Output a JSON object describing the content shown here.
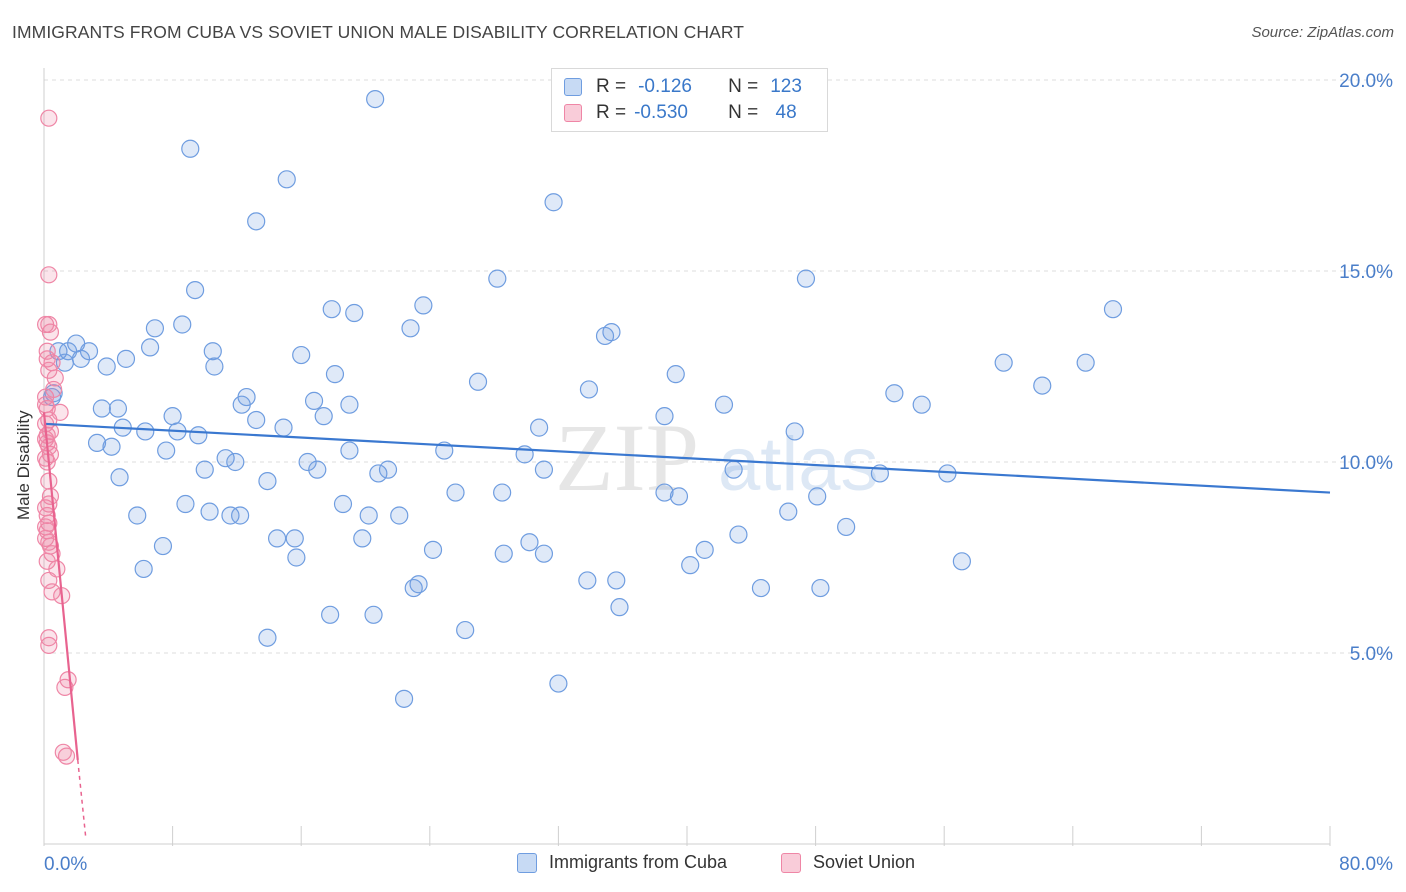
{
  "header": {
    "title": "IMMIGRANTS FROM CUBA VS SOVIET UNION MALE DISABILITY CORRELATION CHART",
    "source": "Source: ZipAtlas.com"
  },
  "stats": [
    {
      "r_label": "R =",
      "r_value": "-0.126",
      "n_label": "N =",
      "n_value": "123"
    },
    {
      "r_label": "R =",
      "r_value": "-0.530",
      "n_label": "N =",
      "n_value": " 48"
    }
  ],
  "colors": {
    "cuba": "#6f9de0",
    "soviet": "#ef86a6",
    "cuba_line": "#3a78d0",
    "soviet_line": "#e8638f"
  },
  "chart_data": {
    "type": "scatter",
    "title": "IMMIGRANTS FROM CUBA VS SOVIET UNION MALE DISABILITY CORRELATION CHART",
    "xlabel": "",
    "ylabel": "Male Disability",
    "xlim": [
      0,
      80
    ],
    "ylim": [
      0,
      20.7
    ],
    "x_tick_labels": [
      "0.0%",
      "80.0%"
    ],
    "y_ticks": [
      5,
      10,
      15,
      20
    ],
    "y_tick_labels": [
      "5.0%",
      "10.0%",
      "15.0%",
      "20.0%"
    ],
    "grid": true,
    "legend_position": "bottom-center",
    "watermark": "ZIPatlas",
    "series": [
      {
        "name": "Immigrants from Cuba",
        "trend": {
          "x0": 0,
          "y0": 11.0,
          "x1": 80,
          "y1": 9.2
        },
        "points": [
          [
            20.6,
            19.5
          ],
          [
            9.1,
            18.2
          ],
          [
            15.1,
            17.4
          ],
          [
            31.7,
            16.8
          ],
          [
            13.2,
            16.3
          ],
          [
            9.4,
            14.5
          ],
          [
            28.2,
            14.8
          ],
          [
            47.4,
            14.8
          ],
          [
            23.6,
            14.1
          ],
          [
            17.9,
            14.0
          ],
          [
            19.3,
            13.9
          ],
          [
            66.5,
            14.0
          ],
          [
            8.6,
            13.6
          ],
          [
            6.9,
            13.5
          ],
          [
            22.8,
            13.5
          ],
          [
            35.3,
            13.4
          ],
          [
            0.9,
            12.9
          ],
          [
            2.0,
            13.1
          ],
          [
            2.8,
            12.9
          ],
          [
            1.5,
            12.9
          ],
          [
            2.3,
            12.7
          ],
          [
            1.3,
            12.6
          ],
          [
            6.6,
            13.0
          ],
          [
            10.5,
            12.9
          ],
          [
            16.0,
            12.8
          ],
          [
            5.1,
            12.7
          ],
          [
            3.9,
            12.5
          ],
          [
            10.6,
            12.5
          ],
          [
            18.1,
            12.3
          ],
          [
            34.9,
            13.3
          ],
          [
            39.3,
            12.3
          ],
          [
            59.7,
            12.6
          ],
          [
            64.8,
            12.6
          ],
          [
            27.0,
            12.1
          ],
          [
            33.9,
            11.9
          ],
          [
            12.6,
            11.7
          ],
          [
            62.1,
            12.0
          ],
          [
            0.5,
            11.7
          ],
          [
            0.6,
            11.8
          ],
          [
            12.3,
            11.5
          ],
          [
            16.8,
            11.6
          ],
          [
            19.0,
            11.5
          ],
          [
            42.3,
            11.5
          ],
          [
            52.9,
            11.8
          ],
          [
            4.6,
            11.4
          ],
          [
            3.6,
            11.4
          ],
          [
            13.2,
            11.1
          ],
          [
            8.0,
            11.2
          ],
          [
            17.4,
            11.2
          ],
          [
            54.6,
            11.5
          ],
          [
            4.9,
            10.9
          ],
          [
            6.3,
            10.8
          ],
          [
            14.9,
            10.9
          ],
          [
            8.3,
            10.8
          ],
          [
            9.6,
            10.7
          ],
          [
            30.8,
            10.9
          ],
          [
            38.6,
            11.2
          ],
          [
            46.7,
            10.8
          ],
          [
            3.3,
            10.5
          ],
          [
            4.2,
            10.4
          ],
          [
            7.6,
            10.3
          ],
          [
            11.3,
            10.1
          ],
          [
            19.0,
            10.3
          ],
          [
            24.9,
            10.3
          ],
          [
            29.9,
            10.2
          ],
          [
            16.4,
            10.0
          ],
          [
            11.9,
            10.0
          ],
          [
            10.0,
            9.8
          ],
          [
            17.0,
            9.8
          ],
          [
            20.8,
            9.7
          ],
          [
            21.4,
            9.8
          ],
          [
            31.1,
            9.8
          ],
          [
            42.9,
            9.8
          ],
          [
            52.0,
            9.7
          ],
          [
            56.2,
            9.7
          ],
          [
            4.7,
            9.6
          ],
          [
            13.9,
            9.5
          ],
          [
            25.6,
            9.2
          ],
          [
            28.5,
            9.2
          ],
          [
            38.6,
            9.2
          ],
          [
            39.5,
            9.1
          ],
          [
            48.1,
            9.1
          ],
          [
            8.8,
            8.9
          ],
          [
            18.6,
            8.9
          ],
          [
            10.3,
            8.7
          ],
          [
            11.6,
            8.6
          ],
          [
            12.2,
            8.6
          ],
          [
            20.2,
            8.6
          ],
          [
            22.1,
            8.6
          ],
          [
            5.8,
            8.6
          ],
          [
            46.3,
            8.7
          ],
          [
            49.9,
            8.3
          ],
          [
            14.5,
            8.0
          ],
          [
            15.6,
            8.0
          ],
          [
            19.8,
            8.0
          ],
          [
            30.2,
            7.9
          ],
          [
            43.2,
            8.1
          ],
          [
            7.4,
            7.8
          ],
          [
            24.2,
            7.7
          ],
          [
            28.6,
            7.6
          ],
          [
            31.1,
            7.6
          ],
          [
            41.1,
            7.7
          ],
          [
            15.7,
            7.5
          ],
          [
            40.2,
            7.3
          ],
          [
            57.1,
            7.4
          ],
          [
            6.2,
            7.2
          ],
          [
            33.8,
            6.9
          ],
          [
            35.6,
            6.9
          ],
          [
            23.3,
            6.8
          ],
          [
            23.0,
            6.7
          ],
          [
            44.6,
            6.7
          ],
          [
            48.3,
            6.7
          ],
          [
            35.8,
            6.2
          ],
          [
            17.8,
            6.0
          ],
          [
            20.5,
            6.0
          ],
          [
            26.2,
            5.6
          ],
          [
            13.9,
            5.4
          ],
          [
            32.0,
            4.2
          ],
          [
            22.4,
            3.8
          ]
        ]
      },
      {
        "name": "Soviet Union",
        "trend": {
          "x0": 0,
          "y0": 11.3,
          "x1": 2.1,
          "y1": 2.2,
          "dash_to_x": 2.6
        },
        "points": [
          [
            0.3,
            19.0
          ],
          [
            0.3,
            14.9
          ],
          [
            0.1,
            13.6
          ],
          [
            0.3,
            13.6
          ],
          [
            0.4,
            13.4
          ],
          [
            0.2,
            12.9
          ],
          [
            0.2,
            12.7
          ],
          [
            0.5,
            12.6
          ],
          [
            0.3,
            12.4
          ],
          [
            0.7,
            12.2
          ],
          [
            0.6,
            11.9
          ],
          [
            0.1,
            11.7
          ],
          [
            0.1,
            11.5
          ],
          [
            0.2,
            11.4
          ],
          [
            1.0,
            11.3
          ],
          [
            0.3,
            11.1
          ],
          [
            0.1,
            11.0
          ],
          [
            0.4,
            10.8
          ],
          [
            0.2,
            10.7
          ],
          [
            0.1,
            10.6
          ],
          [
            0.2,
            10.5
          ],
          [
            0.3,
            10.4
          ],
          [
            0.4,
            10.2
          ],
          [
            0.1,
            10.1
          ],
          [
            0.2,
            10.0
          ],
          [
            0.3,
            9.5
          ],
          [
            0.4,
            9.1
          ],
          [
            0.3,
            8.9
          ],
          [
            0.1,
            8.8
          ],
          [
            0.2,
            8.6
          ],
          [
            0.3,
            8.4
          ],
          [
            0.1,
            8.3
          ],
          [
            0.2,
            8.2
          ],
          [
            0.1,
            8.0
          ],
          [
            0.3,
            7.9
          ],
          [
            0.4,
            7.8
          ],
          [
            0.5,
            7.6
          ],
          [
            0.2,
            7.4
          ],
          [
            0.8,
            7.2
          ],
          [
            0.3,
            6.9
          ],
          [
            0.5,
            6.6
          ],
          [
            1.1,
            6.5
          ],
          [
            0.3,
            5.4
          ],
          [
            0.3,
            5.2
          ],
          [
            1.5,
            4.3
          ],
          [
            1.3,
            4.1
          ],
          [
            1.2,
            2.4
          ],
          [
            1.4,
            2.3
          ]
        ]
      }
    ]
  },
  "legend": {
    "cuba_label": "Immigrants from Cuba",
    "soviet_label": "Soviet Union"
  }
}
